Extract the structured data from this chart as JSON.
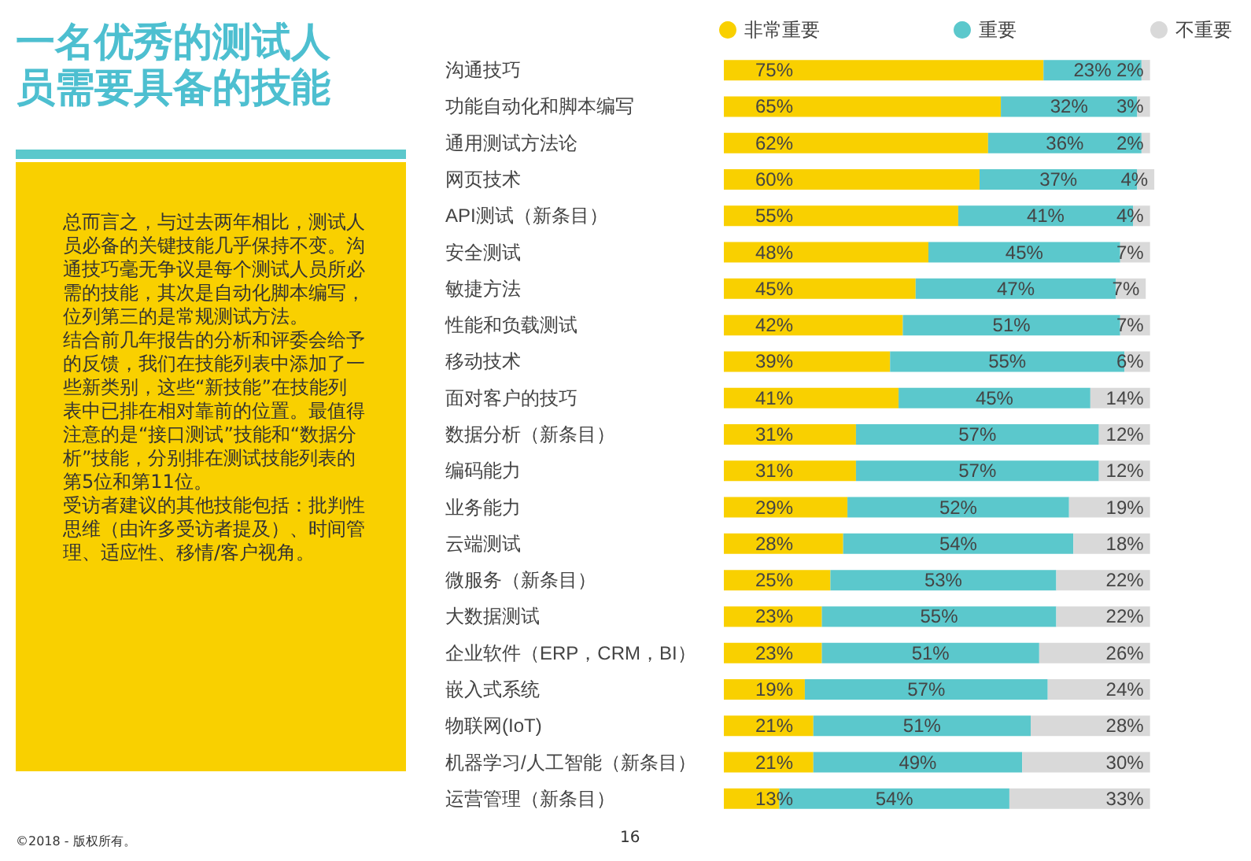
{
  "chart_data": {
    "type": "bar",
    "orientation": "horizontal",
    "stacked": true,
    "title": "一名优秀的测试人员需要具备的技能",
    "categories": [
      "沟通技巧",
      "功能自动化和脚本编写",
      "通用测试方法论",
      "网页技术",
      "API测试（新条目）",
      "安全测试",
      "敏捷方法",
      "性能和负载测试",
      "移动技术",
      "面对客户的技巧",
      "数据分析（新条目）",
      "编码能力",
      "业务能力",
      "云端测试",
      "微服务（新条目）",
      "大数据测试",
      "企业软件（ERP，CRM，BI）",
      "嵌入式系统",
      "物联网(IoT)",
      "机器学习/人工智能（新条目）",
      "运营管理（新条目）"
    ],
    "series": [
      {
        "name": "非常重要",
        "color": "#f9d000",
        "values": [
          75,
          65,
          62,
          60,
          55,
          48,
          45,
          42,
          39,
          41,
          31,
          31,
          29,
          28,
          25,
          23,
          23,
          19,
          21,
          21,
          13
        ],
        "value_labels": [
          "75%",
          "65%",
          "62%",
          "60%",
          "55%",
          "48%",
          "45%",
          "42%",
          "39%",
          "41%",
          "31%",
          "31%",
          "29%",
          "28%",
          "25%",
          "23%",
          "23%",
          "19%",
          "21%",
          "21%",
          "13%"
        ]
      },
      {
        "name": "重要",
        "color": "#5bc8cc",
        "values": [
          23,
          32,
          36,
          37,
          41,
          45,
          47,
          51,
          55,
          45,
          57,
          57,
          52,
          54,
          53,
          55,
          51,
          57,
          51,
          49,
          54
        ],
        "value_labels": [
          "23%",
          "32%",
          "36%",
          "37%",
          "41%",
          "45%",
          "47%",
          "51%",
          "55%",
          "45%",
          "57%",
          "57%",
          "52%",
          "54%",
          "53%",
          "55%",
          "51%",
          "57%",
          "51%",
          "49%",
          "54%"
        ]
      },
      {
        "name": "不重要",
        "color": "#d9d9d9",
        "values": [
          2,
          3,
          2,
          4,
          4,
          7,
          7,
          7,
          6,
          14,
          12,
          12,
          19,
          18,
          22,
          22,
          26,
          24,
          28,
          30,
          33
        ],
        "value_labels": [
          "2%",
          "3%",
          "2%",
          "4%",
          "4%",
          "7%",
          "7%",
          "7%",
          "6%",
          "14%",
          "12%",
          "12%",
          "19%",
          "18%",
          "22%",
          "22%",
          "26%",
          "24%",
          "28%",
          "30%",
          "33%"
        ]
      }
    ],
    "legend": "top",
    "annotations": [
      "总而言之，与过去两年相比，测试人员必备的关键技能几乎保持不变。沟通技巧毫无争议是每个测试人员所必需的技能，其次是自动化脚本编写，位列第三的是常规测试方法。",
      "结合前几年报告的分析和评委会给予的反馈，我们在技能列表中添加了一些新类别，这些“新技能”在技能列表中已排在相对靠前的位置。最值得注意的是“接口测试”技能和“数据分析”技能，分别排在测试技能列表的第5位和第11位。",
      "受访者建议的其他技能包括：批判性思维（由许多受访者提及）、时间管理、适应性、移情/客户视角。",
      "©2018 - 版权所有。",
      "16"
    ]
  }
}
